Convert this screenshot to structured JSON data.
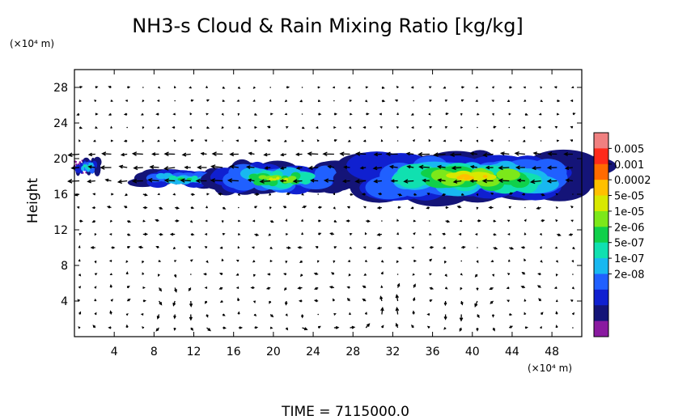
{
  "chart_data": {
    "type": "heatmap",
    "title": "NH3-s Cloud & Rain Mixing Ratio [kg/kg]",
    "ylabel": "Height",
    "y_unit": "(×10⁴ m)",
    "x_unit": "(×10⁴ m)",
    "xlim": [
      0,
      51
    ],
    "ylim": [
      0,
      30
    ],
    "x_ticks": [
      4,
      8,
      12,
      16,
      20,
      24,
      28,
      32,
      36,
      40,
      44,
      48
    ],
    "y_ticks": [
      4,
      8,
      12,
      16,
      20,
      24,
      28
    ],
    "colorbar": {
      "labels": [
        "0.005",
        "0.001",
        "0.0002",
        "5e-05",
        "1e-05",
        "2e-06",
        "5e-07",
        "1e-07",
        "2e-08"
      ],
      "colors": [
        "#f08080",
        "#ff2a1a",
        "#ff6a00",
        "#ffc000",
        "#d8e800",
        "#7ce81a",
        "#10d04a",
        "#10e0b0",
        "#18b8f0",
        "#2060ff",
        "#1020d0",
        "#141478",
        "#8a1aa0"
      ]
    },
    "cloud_layer": [
      {
        "x": [
          0,
          2.5
        ],
        "y_range": [
          18.3,
          19.8
        ],
        "max_level": "1e-07"
      },
      {
        "x": [
          6.5,
          15
        ],
        "y_range": [
          17.0,
          18.5
        ],
        "max_level": "5e-07"
      },
      {
        "x": [
          14,
          27
        ],
        "y_range": [
          16.5,
          19.0
        ],
        "max_level": "1e-05"
      },
      {
        "x": [
          29,
          51
        ],
        "y_range": [
          16.0,
          19.8
        ],
        "max_level": "5e-05"
      }
    ],
    "wind_vectors": "2D velocity arrow field over full domain; recirculation cells centered near x≈8, 23, 35, 43 at y≈3"
  },
  "time_label": "TIME = 7115000.0"
}
